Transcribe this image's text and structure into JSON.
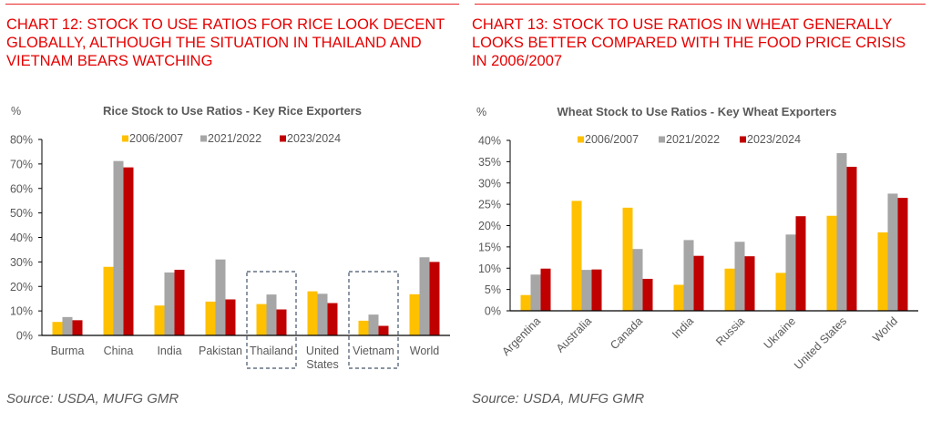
{
  "colors": {
    "heading": "#e60000",
    "rule": "#e8262b",
    "axis_text": "#595959",
    "series": [
      "#ffc000",
      "#a6a6a6",
      "#c00000"
    ],
    "highlight_box": "#44546a"
  },
  "left": {
    "heading": "CHART 12: STOCK TO USE RATIOS FOR RICE LOOK DECENT GLOBALLY, ALTHOUGH THE SITUATION IN THAILAND AND VIETNAM BEARS WATCHING",
    "source": "Source: USDA, MUFG GMR"
  },
  "right": {
    "heading": "CHART 13: STOCK TO USE RATIOS IN WHEAT GENERALLY LOOKS BETTER COMPARED WITH THE FOOD PRICE CRISIS IN 2006/2007",
    "source": "Source: USDA, MUFG GMR"
  },
  "chart_data": [
    {
      "type": "bar",
      "title": "Rice Stock to Use Ratios - Key Rice Exporters",
      "ylabel": "%",
      "xlabel": "",
      "ylim": [
        0,
        80
      ],
      "yticks": [
        0,
        10,
        20,
        30,
        40,
        50,
        60,
        70,
        80
      ],
      "ytick_labels": [
        "0%",
        "10%",
        "20%",
        "30%",
        "40%",
        "50%",
        "60%",
        "70%",
        "80%"
      ],
      "grid": false,
      "legend_position": "top-center",
      "categories": [
        "Burma",
        "China",
        "India",
        "Pakistan",
        "Thailand",
        "United States",
        "Vietnam",
        "World"
      ],
      "category_lines": [
        [
          "Burma"
        ],
        [
          "China"
        ],
        [
          "India"
        ],
        [
          "Pakistan"
        ],
        [
          "Thailand"
        ],
        [
          "United",
          "States"
        ],
        [
          "Vietnam"
        ],
        [
          "World"
        ]
      ],
      "highlighted": [
        "Thailand",
        "Vietnam"
      ],
      "series": [
        {
          "name": "2006/2007",
          "values": [
            5.5,
            28.0,
            12.2,
            13.8,
            12.8,
            18.0,
            6.0,
            16.8
          ]
        },
        {
          "name": "2021/2022",
          "values": [
            7.5,
            71.2,
            25.7,
            31.0,
            16.7,
            17.0,
            8.5,
            31.9
          ]
        },
        {
          "name": "2023/2024",
          "values": [
            6.2,
            68.6,
            26.8,
            14.7,
            10.6,
            13.2,
            3.9,
            30.0
          ]
        }
      ]
    },
    {
      "type": "bar",
      "title": "Wheat Stock to Use Ratios - Key Wheat Exporters",
      "ylabel": "%",
      "xlabel": "",
      "ylim": [
        0,
        40
      ],
      "yticks": [
        0,
        5,
        10,
        15,
        20,
        25,
        30,
        35,
        40
      ],
      "ytick_labels": [
        "0%",
        "5%",
        "10%",
        "15%",
        "20%",
        "25%",
        "30%",
        "35%",
        "40%"
      ],
      "grid": false,
      "legend_position": "top-center",
      "categories": [
        "Argentina",
        "Australia",
        "Canada",
        "India",
        "Russia",
        "Ukraine",
        "United States",
        "World"
      ],
      "category_label_rotation": "diagonal",
      "series": [
        {
          "name": "2006/2007",
          "values": [
            3.7,
            25.8,
            24.2,
            6.1,
            9.9,
            8.9,
            22.3,
            18.4
          ]
        },
        {
          "name": "2021/2022",
          "values": [
            8.5,
            9.6,
            14.5,
            16.6,
            16.2,
            17.9,
            37.0,
            27.5
          ]
        },
        {
          "name": "2023/2024",
          "values": [
            9.9,
            9.7,
            7.5,
            12.9,
            12.8,
            22.2,
            33.8,
            26.5
          ]
        }
      ]
    }
  ]
}
